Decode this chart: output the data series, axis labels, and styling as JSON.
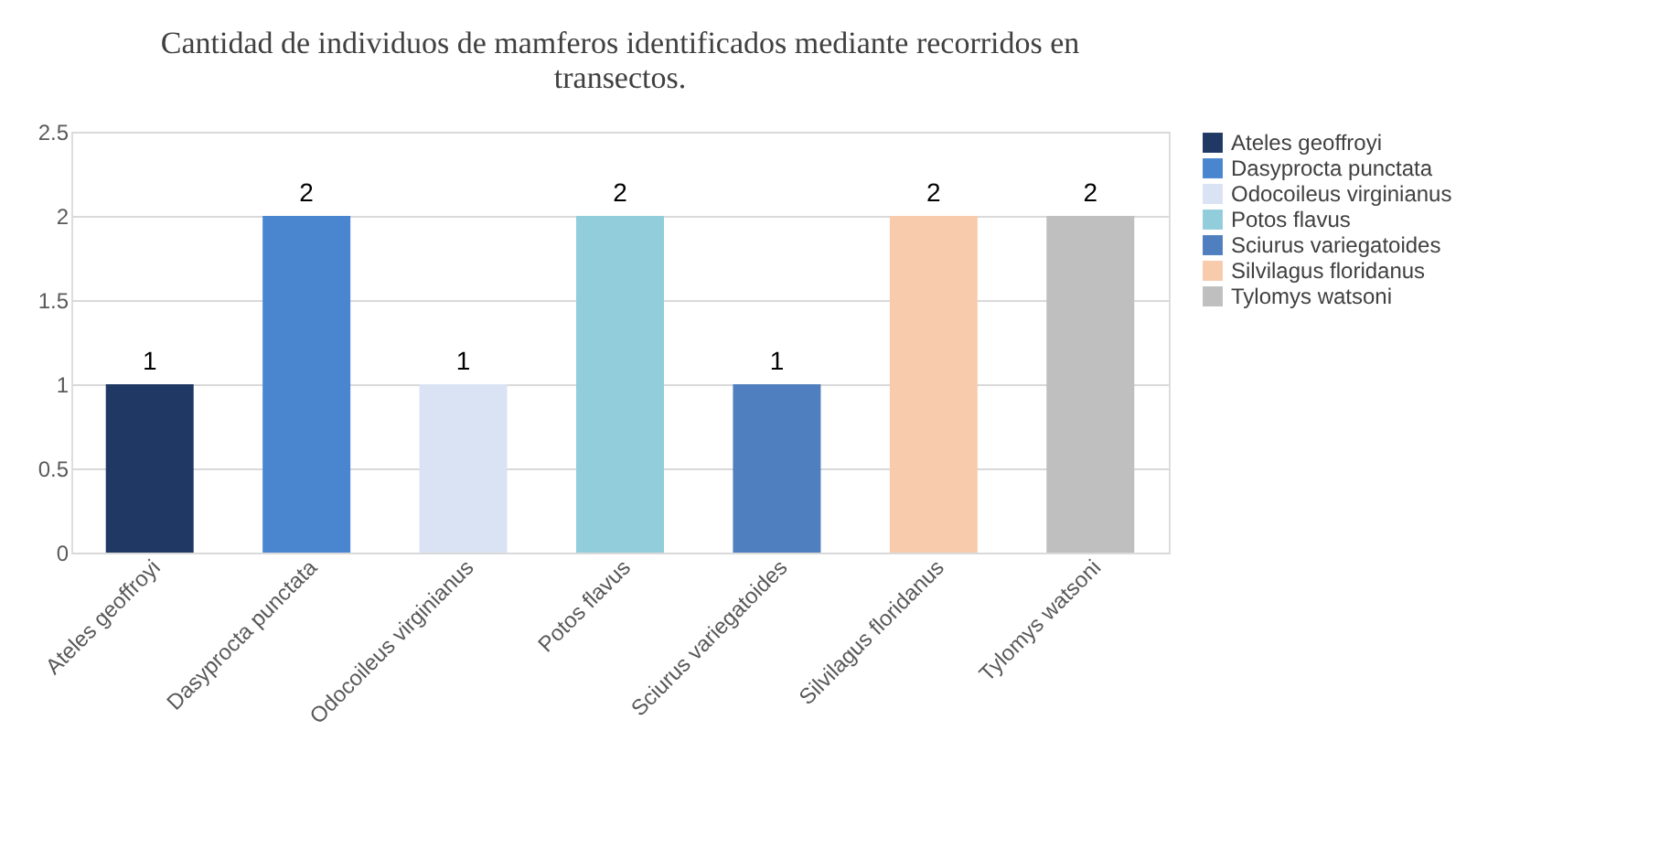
{
  "chart_data": {
    "type": "bar",
    "title": "Cantidad de individuos de mamferos identificados mediante recorridos en transectos.",
    "categories": [
      "Ateles geoffroyi",
      "Dasyprocta punctata",
      "Odocoileus virginianus",
      "Potos flavus",
      "Sciurus variegatoides",
      "Silvilagus floridanus",
      "Tylomys watsoni"
    ],
    "series": [
      {
        "name": "Ateles geoffroyi",
        "color": "#1f3864",
        "values": [
          1,
          null,
          null,
          null,
          null,
          null,
          null
        ]
      },
      {
        "name": "Dasyprocta punctata",
        "color": "#4a86d0",
        "values": [
          null,
          2,
          null,
          null,
          null,
          null,
          null
        ]
      },
      {
        "name": "Odocoileus virginianus",
        "color": "#dae3f3",
        "values": [
          null,
          null,
          1,
          null,
          null,
          null,
          null
        ]
      },
      {
        "name": "Potos flavus",
        "color": "#92cddc",
        "values": [
          null,
          null,
          null,
          2,
          null,
          null,
          null
        ]
      },
      {
        "name": "Sciurus variegatoides",
        "color": "#4f7fbf",
        "values": [
          null,
          null,
          null,
          null,
          1,
          null,
          null
        ]
      },
      {
        "name": "Silvilagus floridanus",
        "color": "#f8cbad",
        "values": [
          null,
          null,
          null,
          null,
          null,
          2,
          null
        ]
      },
      {
        "name": "Tylomys watsoni",
        "color": "#bfbfbf",
        "values": [
          null,
          null,
          null,
          null,
          null,
          null,
          2
        ]
      }
    ],
    "ylim": [
      0,
      2.5
    ],
    "yticks": [
      0,
      0.5,
      1,
      1.5,
      2,
      2.5
    ],
    "grid": "y",
    "legend": "right",
    "data_labels": true
  }
}
